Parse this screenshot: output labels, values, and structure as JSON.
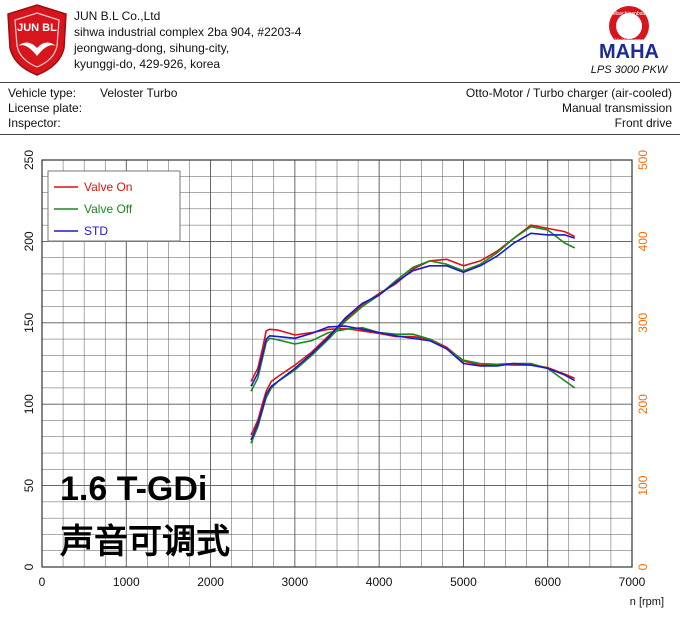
{
  "header": {
    "logo_text": "JUN BL",
    "company_lines": [
      "JUN B.L Co.,Ltd",
      "sihwa industrial complex 2ba 904, #2203-4",
      "jeongwang-dong, sihung-city,",
      "kyunggi-do, 429-926, korea"
    ],
    "maha_ring_text": "Maschinenbau Haldenwang",
    "maha_logo": "MAHA",
    "maha_model": "LPS 3000 PKW"
  },
  "vehicle": {
    "vehicle_type_label": "Vehicle type:",
    "vehicle_type_value": "Veloster Turbo",
    "license_label": "License plate:",
    "inspector_label": "Inspector:",
    "engine": "Otto-Motor / Turbo charger (air-cooled)",
    "transmission": "Manual transmission",
    "drive": "Front drive"
  },
  "overlay": {
    "line1": "1.6 T-GDi",
    "line2": "声音可调式"
  },
  "colors": {
    "valve_on": "#e01010",
    "valve_off": "#1a8a1a",
    "std": "#1a1acc",
    "right_axis": "#ff6a00",
    "grid": "#555555"
  },
  "chart_data": {
    "type": "line",
    "xlabel": "n [rpm]",
    "xlim": [
      0,
      7000
    ],
    "x_ticks": [
      "0",
      "1000",
      "2000",
      "3000",
      "4000",
      "5000",
      "6000",
      "7000"
    ],
    "ylim_left": [
      0,
      250
    ],
    "y_ticks_left": [
      "0",
      "50",
      "100",
      "150",
      "200",
      "250"
    ],
    "ylim_right": [
      0,
      500
    ],
    "y_ticks_right": [
      "0",
      "100",
      "200",
      "300",
      "400",
      "500"
    ],
    "grid": true,
    "legend_position": "top-left",
    "legend": [
      "Valve On",
      "Valve Off",
      "STD"
    ],
    "series": [
      {
        "name": "Valve On",
        "axis": "left",
        "x": [
          2480,
          2560,
          2620,
          2660,
          2720,
          2800,
          3000,
          3200,
          3400,
          3600,
          3800,
          4000,
          4200,
          4400,
          4600,
          4800,
          5000,
          5200,
          5400,
          5600,
          5800,
          6000,
          6200,
          6320
        ],
        "y": [
          81,
          90,
          101,
          108,
          114,
          117,
          124,
          132,
          142,
          152,
          161,
          168,
          174,
          183,
          188,
          189,
          185,
          188,
          194,
          202,
          210,
          208,
          206,
          203
        ]
      },
      {
        "name": "Valve On",
        "axis": "right",
        "x": [
          2480,
          2560,
          2620,
          2660,
          2700,
          2800,
          3000,
          3200,
          3400,
          3600,
          3800,
          4000,
          4200,
          4400,
          4600,
          4800,
          5000,
          5200,
          5400,
          5600,
          5800,
          6000,
          6200,
          6320
        ],
        "y": [
          228,
          244,
          270,
          290,
          292,
          291,
          285,
          288,
          292,
          293,
          290,
          287,
          283,
          283,
          280,
          270,
          253,
          248,
          249,
          248,
          248,
          245,
          237,
          232
        ]
      },
      {
        "name": "Valve Off",
        "axis": "left",
        "x": [
          2480,
          2560,
          2620,
          2660,
          2720,
          2800,
          3000,
          3200,
          3400,
          3600,
          3800,
          4000,
          4200,
          4400,
          4600,
          4800,
          5000,
          5200,
          5400,
          5600,
          5800,
          6000,
          6200,
          6320
        ],
        "y": [
          76,
          86,
          97,
          104,
          110,
          114,
          121,
          130,
          140,
          151,
          160,
          167,
          176,
          184,
          188,
          186,
          182,
          186,
          193,
          202,
          209,
          207,
          199,
          196
        ]
      },
      {
        "name": "Valve Off",
        "axis": "right",
        "x": [
          2480,
          2560,
          2620,
          2660,
          2700,
          2800,
          3000,
          3200,
          3400,
          3600,
          3800,
          4000,
          4200,
          4400,
          4600,
          4800,
          5000,
          5200,
          5400,
          5600,
          5800,
          6000,
          6200,
          6320
        ],
        "y": [
          216,
          232,
          258,
          276,
          281,
          279,
          274,
          278,
          288,
          292,
          294,
          288,
          286,
          286,
          280,
          268,
          254,
          250,
          249,
          250,
          250,
          244,
          229,
          220
        ]
      },
      {
        "name": "STD",
        "axis": "left",
        "x": [
          2480,
          2560,
          2620,
          2660,
          2720,
          2800,
          3000,
          3200,
          3400,
          3600,
          3800,
          4000,
          4200,
          4400,
          4600,
          4800,
          5000,
          5200,
          5400,
          5600,
          5800,
          6000,
          6200,
          6320
        ],
        "y": [
          78,
          88,
          98,
          106,
          111,
          114,
          122,
          131,
          141,
          153,
          162,
          167,
          175,
          182,
          185,
          185,
          181,
          185,
          191,
          199,
          205,
          204,
          204,
          202
        ]
      },
      {
        "name": "STD",
        "axis": "right",
        "x": [
          2480,
          2560,
          2620,
          2660,
          2700,
          2800,
          3000,
          3200,
          3400,
          3600,
          3800,
          4000,
          4200,
          4400,
          4600,
          4800,
          5000,
          5200,
          5400,
          5600,
          5800,
          6000,
          6200,
          6320
        ],
        "y": [
          222,
          238,
          262,
          280,
          284,
          283,
          281,
          287,
          295,
          296,
          292,
          288,
          284,
          281,
          278,
          268,
          250,
          247,
          247,
          250,
          248,
          244,
          236,
          229
        ]
      }
    ]
  }
}
